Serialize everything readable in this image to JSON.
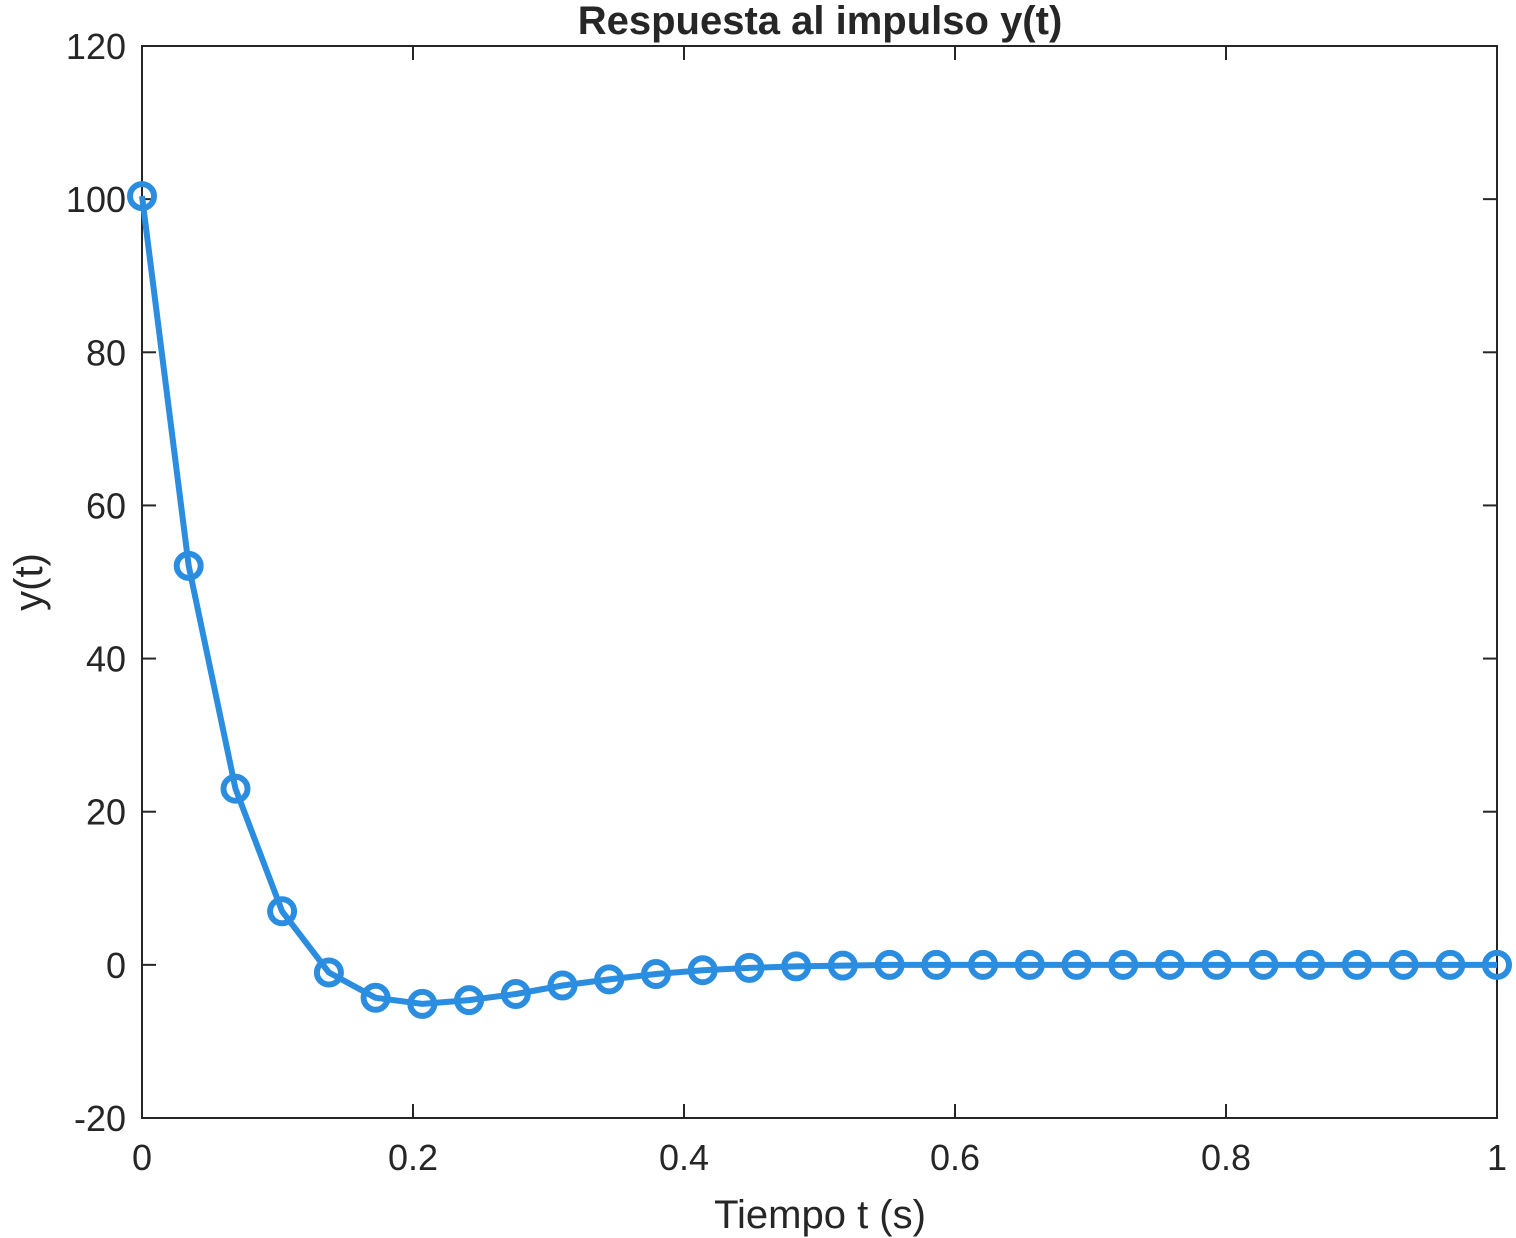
{
  "chart_data": {
    "type": "line",
    "title": "Respuesta al impulso y(t)",
    "xlabel": "Tiempo t (s)",
    "ylabel": "y(t)",
    "xlim": [
      0,
      1
    ],
    "ylim": [
      -20,
      120
    ],
    "xticks": [
      0,
      0.2,
      0.4,
      0.6,
      0.8,
      1
    ],
    "xtick_labels": [
      "0",
      "0.2",
      "0.4",
      "0.6",
      "0.8",
      "1"
    ],
    "yticks": [
      -20,
      0,
      20,
      40,
      60,
      80,
      100,
      120
    ],
    "ytick_labels": [
      "-20",
      "0",
      "20",
      "40",
      "60",
      "80",
      "100",
      "120"
    ],
    "grid": false,
    "marker": "circle",
    "color": "#2b8ddf",
    "series": [
      {
        "x": [
          0,
          0.0345,
          0.069,
          0.1034,
          0.1379,
          0.1724,
          0.2069,
          0.2414,
          0.2759,
          0.3103,
          0.3448,
          0.3793,
          0.4138,
          0.4483,
          0.4828,
          0.5172,
          0.5517,
          0.5862,
          0.6207,
          0.6552,
          0.6897,
          0.7241,
          0.7586,
          0.7931,
          0.8276,
          0.8621,
          0.8966,
          0.931,
          0.9655,
          1
        ],
        "y": [
          100.4,
          52.1,
          23.0,
          7.0,
          -1.0,
          -4.3,
          -5.1,
          -4.6,
          -3.8,
          -2.7,
          -1.9,
          -1.2,
          -0.7,
          -0.4,
          -0.2,
          -0.1,
          0.0,
          0.0,
          0.0,
          0.0,
          0.0,
          0.0,
          0.0,
          0.0,
          0.0,
          0.0,
          0.0,
          0.0,
          0.0,
          0.0
        ]
      }
    ]
  }
}
